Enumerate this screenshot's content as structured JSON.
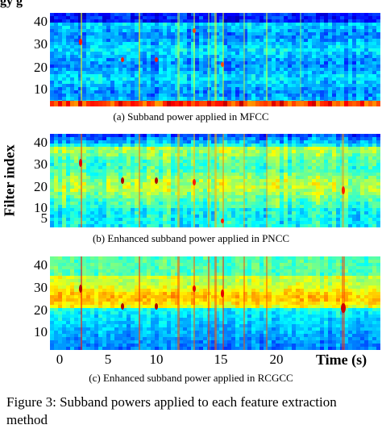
{
  "top_text": "gy                          g",
  "ylabel": "Filter index",
  "xlabel": "Time (s)",
  "caption": "Figure 3: Subband powers applied to each feature extraction method",
  "chart_data": [
    {
      "type": "heatmap",
      "subtitle": "(a) Subband power applied in MFCC",
      "xlabel": "",
      "ylabel": "Filter index",
      "yticks": [
        "10",
        "20",
        "30",
        "40"
      ],
      "ylim": [
        1,
        44
      ],
      "xlim": [
        -1,
        26
      ]
    },
    {
      "type": "heatmap",
      "subtitle": "(b) Enhanced subband power applied in PNCC",
      "xlabel": "",
      "ylabel": "Filter index",
      "yticks": [
        "5",
        "10",
        "20",
        "30",
        "40"
      ],
      "ylim": [
        1,
        44
      ],
      "xlim": [
        -1,
        26
      ]
    },
    {
      "type": "heatmap",
      "subtitle": "(c) Enhanced subband power applied in RCGCC",
      "xlabel": "Time (s)",
      "ylabel": "Filter index",
      "yticks": [
        "10",
        "20",
        "30",
        "40"
      ],
      "xticks": [
        "0",
        "5",
        "10",
        "15",
        "20"
      ],
      "ylim": [
        1,
        44
      ],
      "xlim": [
        -1,
        26
      ]
    }
  ]
}
